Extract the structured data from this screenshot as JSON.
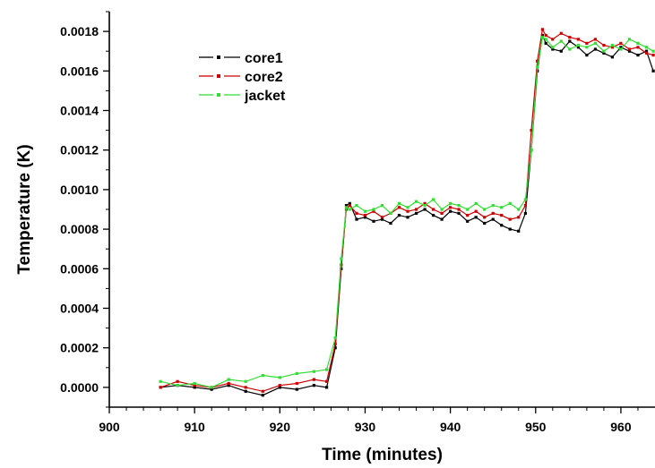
{
  "chart_data": {
    "type": "line",
    "title": "",
    "xlabel": "Time (minutes)",
    "ylabel": "Temperature (K)",
    "xlim": [
      900,
      964
    ],
    "ylim": [
      -0.0001,
      0.0019
    ],
    "x_ticks": [
      900,
      910,
      920,
      930,
      940,
      950,
      960
    ],
    "x_tick_labels": [
      "900",
      "910",
      "920",
      "930",
      "940",
      "950",
      "960"
    ],
    "y_ticks": [
      0.0,
      0.0002,
      0.0004,
      0.0006,
      0.0008,
      0.001,
      0.0012,
      0.0014,
      0.0016,
      0.0018
    ],
    "y_tick_labels": [
      "0.0000",
      "0.0002",
      "0.0004",
      "0.0006",
      "0.0008",
      "0.0010",
      "0.0012",
      "0.0014",
      "0.0016",
      "0.0018"
    ],
    "grid": false,
    "legend_position": "top-left",
    "series": [
      {
        "name": "core1",
        "color": "#000000",
        "x": [
          906,
          908,
          910,
          912,
          914,
          916,
          918,
          920,
          922,
          924,
          925.5,
          926.5,
          927.2,
          927.8,
          928.2,
          929,
          930,
          931,
          932,
          933,
          934,
          935,
          936,
          937,
          938,
          939,
          940,
          941,
          942,
          943,
          944,
          945,
          946,
          947,
          948,
          948.8,
          949.5,
          950.2,
          950.8,
          951.2,
          952,
          953,
          954,
          955,
          956,
          957,
          958,
          959,
          960,
          961,
          962,
          963,
          963.8
        ],
        "y": [
          0.0,
          1e-05,
          0.0,
          -1e-05,
          1e-05,
          -2e-05,
          -4e-05,
          0.0,
          -1e-05,
          1e-05,
          0.0,
          0.0002,
          0.0006,
          0.00092,
          0.00093,
          0.00085,
          0.00086,
          0.00084,
          0.00085,
          0.00083,
          0.00087,
          0.00086,
          0.00088,
          0.0009,
          0.00087,
          0.00085,
          0.00089,
          0.00088,
          0.00084,
          0.00086,
          0.00083,
          0.00085,
          0.00082,
          0.0008,
          0.00079,
          0.00088,
          0.0012,
          0.0016,
          0.00178,
          0.00174,
          0.00171,
          0.0017,
          0.00175,
          0.00172,
          0.00168,
          0.00171,
          0.00169,
          0.00167,
          0.00172,
          0.0017,
          0.00168,
          0.0017,
          0.0016
        ]
      },
      {
        "name": "core2",
        "color": "#cc0000",
        "x": [
          906,
          908,
          910,
          912,
          914,
          916,
          918,
          920,
          922,
          924,
          925.5,
          926.5,
          927.2,
          927.8,
          928.2,
          929,
          930,
          931,
          932,
          933,
          934,
          935,
          936,
          937,
          938,
          939,
          940,
          941,
          942,
          943,
          944,
          945,
          946,
          947,
          948,
          948.8,
          949.5,
          950.2,
          950.8,
          951.2,
          952,
          953,
          954,
          955,
          956,
          957,
          958,
          959,
          960,
          961,
          962,
          963,
          963.8
        ],
        "y": [
          0.0,
          3e-05,
          1e-05,
          0.0,
          2e-05,
          0.0,
          -2e-05,
          1e-05,
          2e-05,
          4e-05,
          3e-05,
          0.00022,
          0.00062,
          0.0009,
          0.00092,
          0.00088,
          0.00087,
          0.00089,
          0.00086,
          0.00088,
          0.00091,
          0.00089,
          0.0009,
          0.00093,
          0.0009,
          0.00088,
          0.00091,
          0.0009,
          0.00087,
          0.00089,
          0.00086,
          0.00088,
          0.00087,
          0.00085,
          0.00086,
          0.00092,
          0.0013,
          0.00165,
          0.00181,
          0.00178,
          0.00176,
          0.00179,
          0.00177,
          0.00176,
          0.00174,
          0.00176,
          0.00173,
          0.00172,
          0.00174,
          0.00171,
          0.00172,
          0.00169,
          0.00168
        ]
      },
      {
        "name": "jacket",
        "color": "#33dd33",
        "x": [
          906,
          908,
          910,
          912,
          914,
          916,
          918,
          920,
          922,
          924,
          925.5,
          926.5,
          927.2,
          927.8,
          928.2,
          929,
          930,
          931,
          932,
          933,
          934,
          935,
          936,
          937,
          938,
          939,
          940,
          941,
          942,
          943,
          944,
          945,
          946,
          947,
          948,
          948.8,
          949.5,
          950.2,
          950.8,
          951.2,
          952,
          953,
          954,
          955,
          956,
          957,
          958,
          959,
          960,
          961,
          962,
          963,
          963.8
        ],
        "y": [
          3e-05,
          1e-05,
          2e-05,
          0.0,
          4e-05,
          3e-05,
          6e-05,
          5e-05,
          7e-05,
          8e-05,
          9e-05,
          0.00025,
          0.00065,
          0.00091,
          0.0009,
          0.00092,
          0.00089,
          0.0009,
          0.00092,
          0.00088,
          0.00093,
          0.00091,
          0.00094,
          0.00092,
          0.00095,
          0.0009,
          0.00093,
          0.00092,
          0.0009,
          0.00093,
          0.0009,
          0.00092,
          0.00091,
          0.00093,
          0.0009,
          0.00095,
          0.0012,
          0.00162,
          0.00177,
          0.00176,
          0.00172,
          0.00175,
          0.00171,
          0.00173,
          0.00172,
          0.00174,
          0.0017,
          0.00173,
          0.00171,
          0.00176,
          0.00174,
          0.00172,
          0.0017
        ]
      }
    ]
  }
}
